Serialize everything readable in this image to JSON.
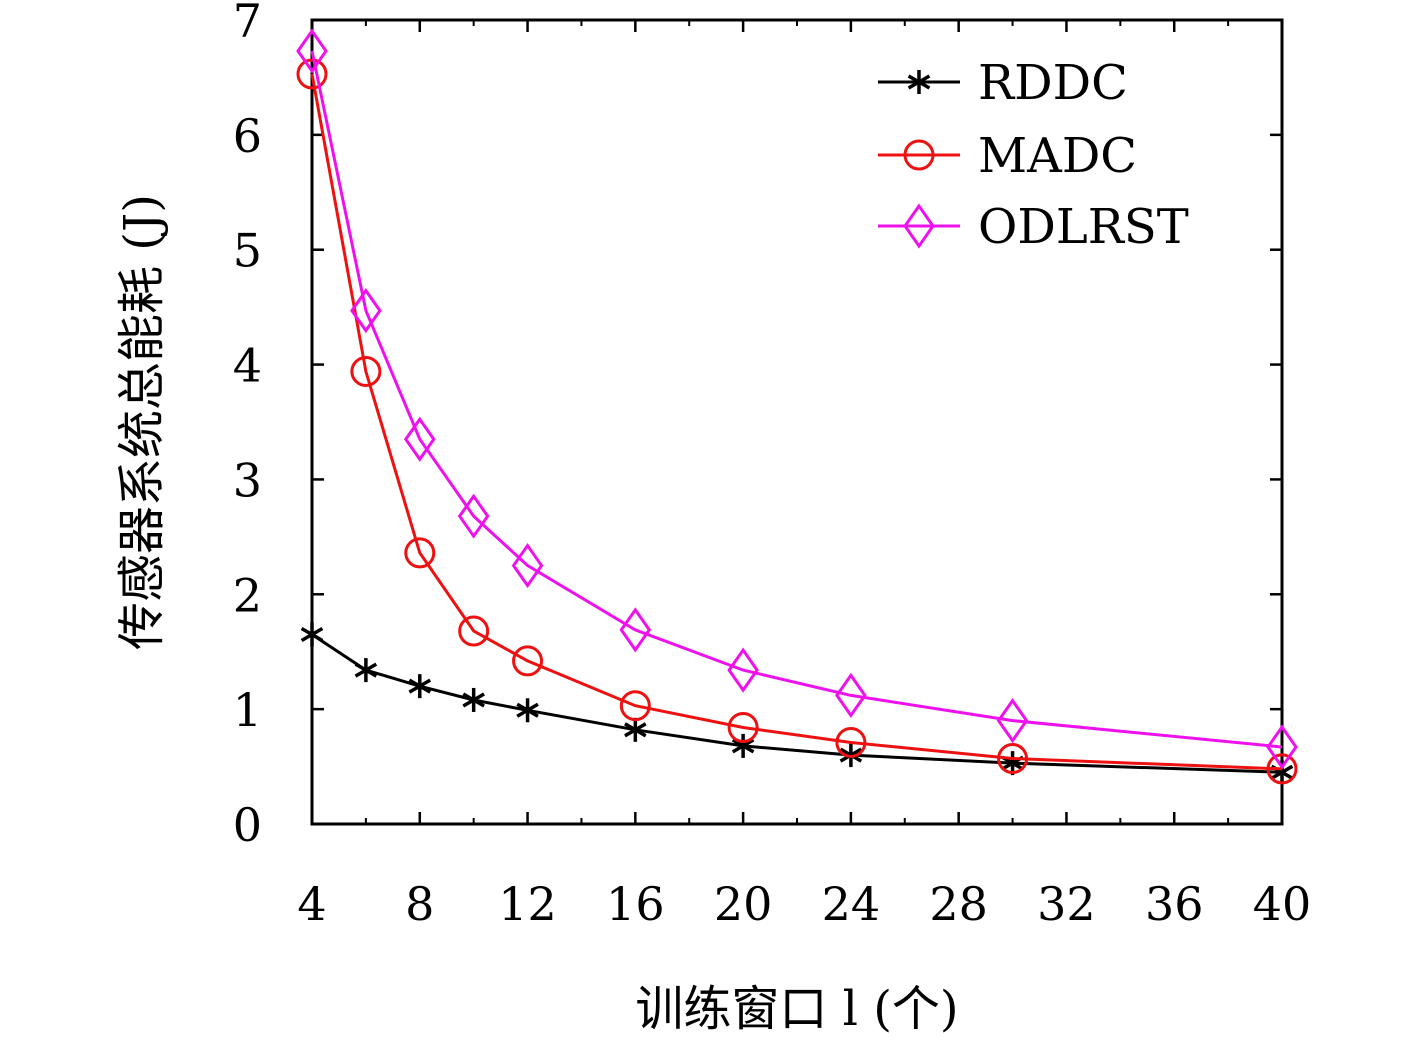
{
  "chart_data": {
    "type": "line",
    "xlabel": "训练窗口 l (个)",
    "ylabel": "传感器系统总能耗 (J)",
    "xlim": [
      4,
      40
    ],
    "ylim": [
      0,
      7
    ],
    "xticks": [
      4,
      8,
      12,
      16,
      20,
      24,
      28,
      32,
      36,
      40
    ],
    "yticks": [
      0,
      1,
      2,
      3,
      4,
      5,
      6,
      7
    ],
    "xminor": [
      6,
      10,
      14,
      18,
      22,
      26,
      30,
      34,
      38
    ],
    "legend_position": "top-right",
    "grid": false,
    "series": [
      {
        "name": "RDDC",
        "color": "#000000",
        "marker": "asterisk",
        "x": [
          4,
          6,
          8,
          10,
          12,
          16,
          20,
          24,
          30,
          40
        ],
        "values": [
          1.65,
          1.34,
          1.2,
          1.08,
          0.99,
          0.82,
          0.68,
          0.6,
          0.53,
          0.45
        ]
      },
      {
        "name": "MADC",
        "color": "#ee1111",
        "marker": "circle",
        "x": [
          4,
          6,
          8,
          10,
          12,
          16,
          20,
          24,
          30,
          40
        ],
        "values": [
          6.53,
          3.94,
          2.36,
          1.68,
          1.42,
          1.03,
          0.84,
          0.71,
          0.57,
          0.48
        ]
      },
      {
        "name": "ODLRST",
        "color": "#ee11ee",
        "marker": "diamond",
        "x": [
          4,
          6,
          8,
          10,
          12,
          16,
          20,
          24,
          30,
          40
        ],
        "values": [
          6.73,
          4.47,
          3.35,
          2.68,
          2.25,
          1.69,
          1.34,
          1.12,
          0.9,
          0.67
        ]
      }
    ]
  }
}
